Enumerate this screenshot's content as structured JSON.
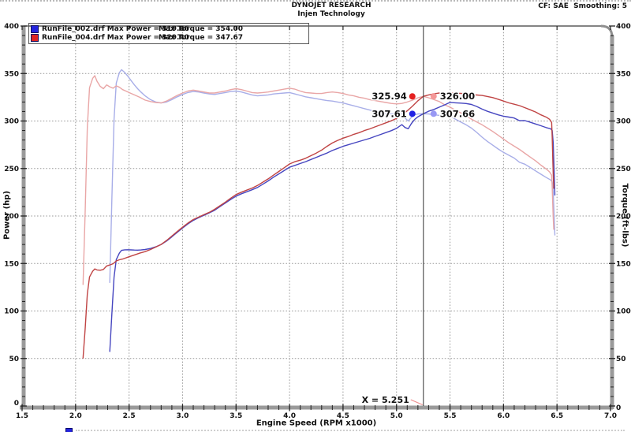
{
  "header": {
    "title": "DYNOJET RESEARCH",
    "subtitle": "Injen Technology",
    "correction_smoothing": "CF: SAE  Smoothing: 5"
  },
  "legend": {
    "rows": [
      {
        "color": "#2424dd",
        "left": "RunFile_002.drf Max Power = 319.66",
        "right": "Max Torque = 354.00"
      },
      {
        "color": "#dd2424",
        "left": "RunFile_004.drf Max Power = 329.40",
        "right": "Max Torque = 347.67"
      }
    ]
  },
  "chart_data": {
    "type": "line",
    "title": "DYNOJET RESEARCH",
    "subtitle": "Injen Technology",
    "correction": "CF: SAE",
    "smoothing": "5",
    "xlabel": "Engine Speed (RPM x1000)",
    "ylabel_left": "Power (hp)",
    "ylabel_right": "Torque (ft-lbs)",
    "xlim": [
      1.5,
      7.0
    ],
    "x_major_step": 0.5,
    "x_minor_step": 0.1,
    "ylim": [
      0,
      400
    ],
    "y_major_step": 50,
    "y_minor_step": 10,
    "grid": "dotted gray at every major tick, both axes",
    "power_from_torque": "power_hp = torque_ftlbs * rpm_x1000 / 5.252 (power and torque curves cross at 5.252 rpm x1000)",
    "series": [
      {
        "name": "RunFile_002.drf",
        "run_color": "#2424dd",
        "max_power": 319.66,
        "max_torque": 354.0,
        "torque_color": "#a8aee8",
        "power_color": "#4646c0",
        "torque_points_rpm_ftlbs": [
          [
            2.32,
            130
          ],
          [
            2.34,
            220
          ],
          [
            2.36,
            302
          ],
          [
            2.38,
            340
          ],
          [
            2.41,
            351
          ],
          [
            2.43,
            354
          ],
          [
            2.46,
            351
          ],
          [
            2.49,
            347
          ],
          [
            2.52,
            342.5
          ],
          [
            2.55,
            338
          ],
          [
            2.58,
            334
          ],
          [
            2.61,
            330.5
          ],
          [
            2.65,
            326.5
          ],
          [
            2.7,
            322.5
          ],
          [
            2.75,
            320
          ],
          [
            2.8,
            319
          ],
          [
            2.85,
            320
          ],
          [
            2.9,
            322.5
          ],
          [
            2.95,
            325.5
          ],
          [
            3,
            328
          ],
          [
            3.05,
            330
          ],
          [
            3.1,
            331
          ],
          [
            3.15,
            330.5
          ],
          [
            3.2,
            329.5
          ],
          [
            3.25,
            328.5
          ],
          [
            3.3,
            328
          ],
          [
            3.35,
            329
          ],
          [
            3.4,
            330
          ],
          [
            3.45,
            331
          ],
          [
            3.5,
            331.5
          ],
          [
            3.55,
            330.5
          ],
          [
            3.6,
            329
          ],
          [
            3.65,
            327.5
          ],
          [
            3.7,
            326.5
          ],
          [
            3.75,
            327
          ],
          [
            3.8,
            327.5
          ],
          [
            3.85,
            328.5
          ],
          [
            3.9,
            329
          ],
          [
            3.95,
            329.5
          ],
          [
            4,
            330
          ],
          [
            4.05,
            328.5
          ],
          [
            4.1,
            327
          ],
          [
            4.15,
            325.5
          ],
          [
            4.2,
            324.5
          ],
          [
            4.25,
            323.5
          ],
          [
            4.3,
            322.5
          ],
          [
            4.35,
            321.5
          ],
          [
            4.4,
            321
          ],
          [
            4.45,
            320
          ],
          [
            4.5,
            319
          ],
          [
            4.55,
            317.5
          ],
          [
            4.6,
            316
          ],
          [
            4.65,
            314.5
          ],
          [
            4.7,
            313
          ],
          [
            4.75,
            311.5
          ],
          [
            4.8,
            310.5
          ],
          [
            4.85,
            309.5
          ],
          [
            4.9,
            308.5
          ],
          [
            4.95,
            307.5
          ],
          [
            5,
            307
          ],
          [
            5.05,
            308
          ],
          [
            5.08,
            303
          ],
          [
            5.11,
            300
          ],
          [
            5.14,
            304
          ],
          [
            5.17,
            306.5
          ],
          [
            5.2,
            307.5
          ],
          [
            5.251,
            307.66
          ],
          [
            5.3,
            307.5
          ],
          [
            5.35,
            306.5
          ],
          [
            5.4,
            306
          ],
          [
            5.45,
            305.5
          ],
          [
            5.5,
            305.2
          ],
          [
            5.55,
            302
          ],
          [
            5.6,
            299
          ],
          [
            5.65,
            296
          ],
          [
            5.7,
            292.5
          ],
          [
            5.75,
            288
          ],
          [
            5.8,
            283
          ],
          [
            5.85,
            278.5
          ],
          [
            5.9,
            274.5
          ],
          [
            5.95,
            270.5
          ],
          [
            6,
            267
          ],
          [
            6.05,
            264
          ],
          [
            6.1,
            261
          ],
          [
            6.15,
            256.5
          ],
          [
            6.2,
            254.5
          ],
          [
            6.25,
            251
          ],
          [
            6.3,
            247.5
          ],
          [
            6.35,
            244
          ],
          [
            6.4,
            240.5
          ],
          [
            6.44,
            238
          ],
          [
            6.455,
            236
          ],
          [
            6.465,
            225
          ],
          [
            6.47,
            210
          ],
          [
            6.475,
            195
          ],
          [
            6.48,
            180
          ]
        ]
      },
      {
        "name": "RunFile_004.drf",
        "run_color": "#dd2424",
        "max_power": 329.4,
        "max_torque": 347.67,
        "torque_color": "#e9a6a6",
        "power_color": "#c04444",
        "torque_points_rpm_ftlbs": [
          [
            2.07,
            128
          ],
          [
            2.09,
            205
          ],
          [
            2.11,
            293
          ],
          [
            2.13,
            335
          ],
          [
            2.16,
            345
          ],
          [
            2.18,
            347.7
          ],
          [
            2.2,
            342
          ],
          [
            2.23,
            336.5
          ],
          [
            2.26,
            334
          ],
          [
            2.29,
            338
          ],
          [
            2.32,
            336
          ],
          [
            2.35,
            334.5
          ],
          [
            2.38,
            337
          ],
          [
            2.41,
            335.5
          ],
          [
            2.44,
            333
          ],
          [
            2.47,
            331.5
          ],
          [
            2.5,
            330
          ],
          [
            2.55,
            327.5
          ],
          [
            2.6,
            325
          ],
          [
            2.65,
            322
          ],
          [
            2.7,
            320.5
          ],
          [
            2.75,
            319.5
          ],
          [
            2.8,
            319
          ],
          [
            2.85,
            321
          ],
          [
            2.9,
            324
          ],
          [
            2.95,
            327
          ],
          [
            3,
            329.5
          ],
          [
            3.05,
            331.5
          ],
          [
            3.1,
            332.5
          ],
          [
            3.15,
            331.5
          ],
          [
            3.2,
            330.5
          ],
          [
            3.25,
            329.5
          ],
          [
            3.3,
            329.5
          ],
          [
            3.35,
            330.5
          ],
          [
            3.4,
            331.5
          ],
          [
            3.45,
            333
          ],
          [
            3.5,
            334
          ],
          [
            3.55,
            333
          ],
          [
            3.6,
            331.5
          ],
          [
            3.65,
            330
          ],
          [
            3.7,
            329.5
          ],
          [
            3.75,
            330
          ],
          [
            3.8,
            330.5
          ],
          [
            3.85,
            331.5
          ],
          [
            3.9,
            332.5
          ],
          [
            3.95,
            333.5
          ],
          [
            4,
            334.5
          ],
          [
            4.05,
            333.5
          ],
          [
            4.1,
            331.5
          ],
          [
            4.15,
            330
          ],
          [
            4.2,
            329.5
          ],
          [
            4.25,
            329
          ],
          [
            4.3,
            329
          ],
          [
            4.35,
            330
          ],
          [
            4.4,
            330.5
          ],
          [
            4.45,
            330
          ],
          [
            4.5,
            329
          ],
          [
            4.55,
            327.5
          ],
          [
            4.6,
            326.5
          ],
          [
            4.65,
            325
          ],
          [
            4.7,
            324
          ],
          [
            4.75,
            322.5
          ],
          [
            4.8,
            321.5
          ],
          [
            4.85,
            320.5
          ],
          [
            4.9,
            319.5
          ],
          [
            4.95,
            318.5
          ],
          [
            5,
            318
          ],
          [
            5.05,
            318.5
          ],
          [
            5.1,
            320
          ],
          [
            5.15,
            322
          ],
          [
            5.2,
            324.5
          ],
          [
            5.251,
            326
          ],
          [
            5.3,
            324.5
          ],
          [
            5.35,
            322.5
          ],
          [
            5.4,
            320.5
          ],
          [
            5.45,
            317
          ],
          [
            5.5,
            314.6
          ],
          [
            5.55,
            311.5
          ],
          [
            5.6,
            308.6
          ],
          [
            5.65,
            305.5
          ],
          [
            5.7,
            302
          ],
          [
            5.75,
            299
          ],
          [
            5.8,
            296
          ],
          [
            5.85,
            292.5
          ],
          [
            5.9,
            289
          ],
          [
            5.95,
            285
          ],
          [
            6,
            281
          ],
          [
            6.05,
            277
          ],
          [
            6.1,
            273.5
          ],
          [
            6.15,
            270
          ],
          [
            6.2,
            266
          ],
          [
            6.25,
            262
          ],
          [
            6.3,
            258
          ],
          [
            6.35,
            253.5
          ],
          [
            6.4,
            249.5
          ],
          [
            6.43,
            246.5
          ],
          [
            6.45,
            243
          ],
          [
            6.455,
            230
          ],
          [
            6.46,
            212
          ],
          [
            6.465,
            198
          ],
          [
            6.47,
            186
          ]
        ]
      }
    ],
    "cursor": {
      "rpm": 5.251,
      "label": "X = 5.251",
      "readouts": [
        {
          "name": "runfile-004-power",
          "value": 325.94,
          "text": "325.94",
          "dot": "#e42020",
          "side": "left"
        },
        {
          "name": "runfile-004-torque",
          "value": 326.0,
          "text": "326.00",
          "dot": "#f49898",
          "side": "right"
        },
        {
          "name": "runfile-002-power",
          "value": 307.61,
          "text": "307.61",
          "dot": "#2020e4",
          "side": "left"
        },
        {
          "name": "runfile-002-torque",
          "value": 307.66,
          "text": "307.66",
          "dot": "#9898f4",
          "side": "right"
        }
      ]
    }
  },
  "axis_zero_label": "0"
}
